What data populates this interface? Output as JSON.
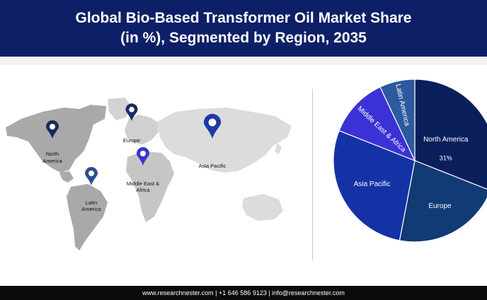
{
  "header": {
    "title_line1": "Global Bio-Based Transformer Oil Market Share",
    "title_line2": "(in %), Segmented by Region, 2035"
  },
  "map": {
    "regions": [
      {
        "id": "north-america",
        "label_lines": [
          "North",
          "America"
        ],
        "pin_color": "#1a2a5e"
      },
      {
        "id": "europe",
        "label_lines": [
          "Europe"
        ],
        "pin_color": "#1a2a5e"
      },
      {
        "id": "asia-pacific",
        "label_lines": [
          "Asia Pacific"
        ],
        "pin_color": "#1e3aa6"
      },
      {
        "id": "middle-east-africa",
        "label_lines": [
          "Middle East &",
          "Africa"
        ],
        "pin_color": "#3a35d0"
      },
      {
        "id": "latin-america",
        "label_lines": [
          "Latin",
          "America"
        ],
        "pin_color": "#2c4f8a"
      }
    ]
  },
  "chart_data": {
    "type": "pie",
    "series": [
      {
        "name": "North America",
        "value": 31,
        "label": "31%",
        "color": "#0a1f5c"
      },
      {
        "name": "Europe",
        "value": 22,
        "label": "",
        "color": "#123a75"
      },
      {
        "name": "Asia Pacific",
        "value": 28,
        "label": "",
        "color": "#1432a6"
      },
      {
        "name": "Middle East & Africa",
        "value": 12,
        "label": "",
        "color": "#3b32d6"
      },
      {
        "name": "Latin America",
        "value": 7,
        "label": "",
        "color": "#2d5a9e"
      }
    ],
    "start_angle_deg": 0,
    "label_color": "#ffffff",
    "legend": "none"
  },
  "footer": {
    "text": "www.researchnester.com  |  +1 646 586 9123  |  info@researchnester.com"
  }
}
